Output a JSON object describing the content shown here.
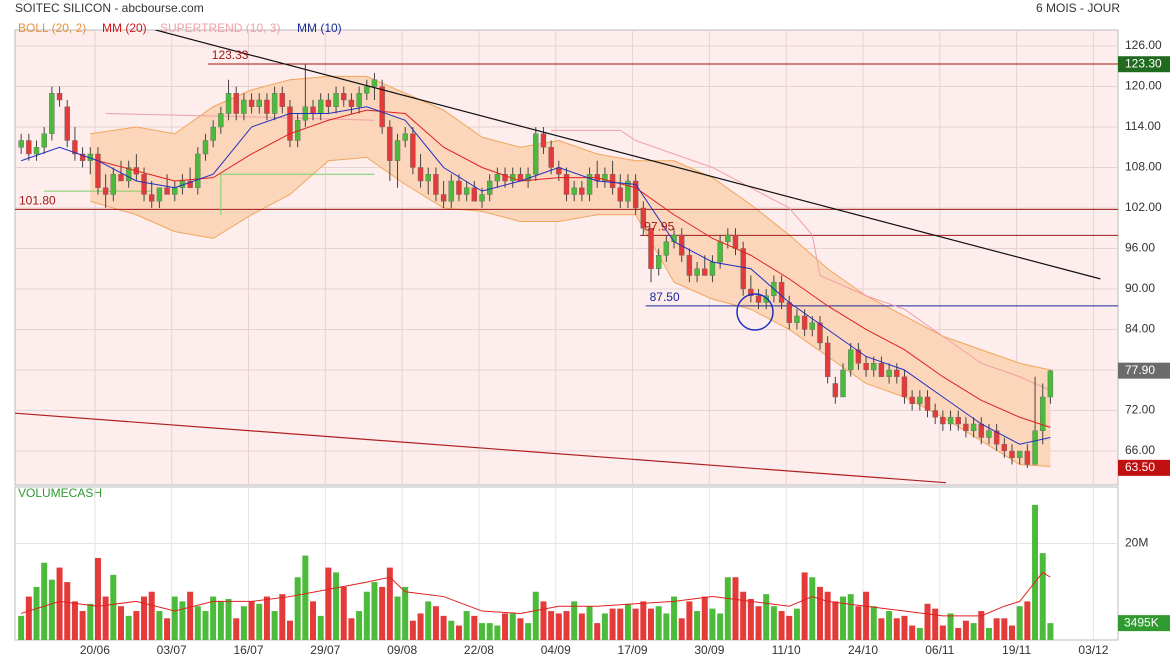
{
  "chart_data": {
    "type": "candlestick",
    "title": "SOITEC SILICON - abcbourse.com",
    "period": "6 MOIS - JOUR",
    "xlim": [
      -0.8,
      142.8
    ],
    "xticks": [
      {
        "value": 9.6,
        "label": "20/06"
      },
      {
        "value": 19.6,
        "label": "03/07"
      },
      {
        "value": 29.6,
        "label": "16/07"
      },
      {
        "value": 39.6,
        "label": "29/07"
      },
      {
        "value": 49.6,
        "label": "09/08"
      },
      {
        "value": 59.6,
        "label": "22/08"
      },
      {
        "value": 69.6,
        "label": "04/09"
      },
      {
        "value": 79.6,
        "label": "17/09"
      },
      {
        "value": 89.6,
        "label": "30/09"
      },
      {
        "value": 99.6,
        "label": "11/10"
      },
      {
        "value": 109.6,
        "label": "24/10"
      },
      {
        "value": 119.6,
        "label": "06/11"
      },
      {
        "value": 129.6,
        "label": "19/11"
      },
      {
        "value": 139.6,
        "label": "03/12"
      }
    ],
    "ylim": [
      60.96,
      128.37
    ],
    "yticks": [
      {
        "value": 66,
        "label": "66.00"
      },
      {
        "value": 72,
        "label": "72.00"
      },
      {
        "value": 78,
        "label": "78.00"
      },
      {
        "value": 84,
        "label": "84.00"
      },
      {
        "value": 90,
        "label": "90.00"
      },
      {
        "value": 96,
        "label": "96.00"
      },
      {
        "value": 102,
        "label": "102.00"
      },
      {
        "value": 108,
        "label": "108.00"
      },
      {
        "value": 114,
        "label": "114.00"
      },
      {
        "value": 120,
        "label": "120.00"
      },
      {
        "value": 126,
        "label": "126.00"
      }
    ],
    "grid": true,
    "up_color": "#4cbb3c",
    "down_color": "#e43a3a",
    "open": [
      111,
      112,
      110,
      111,
      113,
      119,
      117,
      112,
      110,
      109,
      110,
      105,
      104,
      107,
      106,
      108,
      107,
      104,
      103,
      105,
      104,
      105,
      106,
      105,
      110,
      112,
      114,
      116,
      119,
      116,
      118,
      117,
      118,
      116,
      119,
      117,
      112,
      115,
      117,
      116,
      118,
      117,
      119,
      118,
      117,
      119,
      120,
      120,
      114,
      109,
      112,
      113,
      108,
      106,
      107,
      104,
      103,
      106,
      104,
      105,
      103,
      104,
      106,
      107,
      106,
      107,
      106,
      107,
      113,
      111,
      108,
      107,
      104,
      105,
      104,
      107,
      106,
      107,
      105,
      103,
      106,
      102,
      99,
      93,
      95,
      97,
      98,
      95,
      92,
      93,
      92,
      94,
      97,
      98,
      96,
      90,
      89,
      88,
      89,
      91,
      88,
      85,
      86,
      84,
      85,
      82,
      76,
      74,
      78,
      81,
      79,
      78,
      79,
      77,
      78,
      77,
      74,
      73,
      74,
      72,
      71,
      70,
      71,
      70,
      69,
      70,
      68,
      69,
      67,
      66,
      65,
      66,
      64,
      69,
      74
    ],
    "high": [
      113,
      113,
      112,
      114,
      120,
      120,
      118,
      114,
      111,
      111,
      111,
      107,
      108,
      109,
      109,
      110,
      108,
      106,
      105,
      107,
      106,
      107,
      108,
      111,
      113,
      115,
      117,
      121,
      120,
      119,
      119,
      119,
      119,
      120,
      120,
      118,
      116,
      123.3,
      118,
      119,
      119,
      120,
      120,
      119,
      120,
      121,
      122,
      121,
      115,
      113,
      114,
      114,
      110,
      108,
      108,
      106,
      107,
      107,
      106,
      106,
      105,
      107,
      108,
      108,
      108,
      108,
      108,
      114,
      114,
      112,
      109,
      108,
      106,
      106,
      108,
      109,
      108,
      109,
      107,
      107,
      107,
      103,
      99,
      96,
      98,
      99,
      99,
      96,
      94,
      95,
      95,
      98,
      99,
      99,
      97,
      92,
      90,
      90,
      92,
      92,
      89,
      87,
      87,
      86,
      86,
      83,
      77,
      79,
      82,
      82,
      80,
      80,
      80,
      79,
      79,
      78,
      75,
      75,
      75,
      73,
      72,
      72,
      72,
      71,
      71,
      71,
      70,
      70,
      68,
      67,
      66,
      67,
      77,
      76,
      78
    ],
    "low": [
      110,
      109,
      109,
      110,
      112,
      117,
      111,
      109,
      108,
      107,
      104,
      102,
      103,
      106,
      105,
      106,
      103,
      102,
      102,
      104,
      103,
      104,
      105,
      104,
      109,
      111,
      113,
      115,
      115,
      115,
      116,
      116,
      115,
      115,
      116,
      111,
      111,
      114,
      115,
      115,
      116,
      116,
      117,
      116,
      116,
      118,
      118,
      113,
      106,
      105,
      111,
      107,
      105,
      104,
      103,
      102,
      102,
      103,
      103,
      103,
      102,
      103,
      105,
      105,
      105,
      106,
      105,
      106,
      110,
      107,
      106,
      103,
      103,
      103,
      103,
      105,
      105,
      104,
      102,
      102,
      101,
      98,
      91,
      92,
      94,
      96,
      94,
      91,
      91,
      92,
      91,
      93,
      96,
      95,
      89,
      88,
      87,
      87,
      88,
      87,
      84,
      84,
      83,
      83,
      81,
      76,
      73,
      74,
      77,
      78,
      77,
      77,
      77,
      76,
      76,
      73,
      72,
      72,
      71,
      70,
      69,
      69,
      69,
      68,
      68,
      67,
      67,
      66,
      65,
      64,
      64,
      63.5,
      64,
      67,
      73
    ],
    "close": [
      112,
      110,
      111,
      113,
      119,
      118,
      112,
      110,
      109,
      110,
      105,
      104,
      107,
      106,
      108,
      107,
      104,
      103,
      105,
      104,
      105,
      106,
      105,
      110,
      112,
      114,
      116,
      119,
      116,
      118,
      117,
      118,
      116,
      119,
      117,
      112,
      115,
      117,
      116,
      118,
      117,
      119,
      118,
      117,
      119,
      120,
      121,
      114,
      109,
      112,
      113,
      108,
      106,
      107,
      104,
      103,
      106,
      104,
      105,
      103,
      104,
      106,
      107,
      106,
      107,
      106,
      107,
      113,
      111,
      108,
      107,
      104,
      105,
      104,
      107,
      106,
      107,
      105,
      103,
      106,
      102,
      99,
      93,
      95,
      97,
      98,
      95,
      92,
      93,
      92,
      94,
      97,
      98,
      96,
      90,
      89,
      88,
      89,
      91,
      88,
      85,
      86,
      84,
      85,
      82,
      77,
      74,
      78,
      81,
      79,
      78,
      79,
      77,
      78,
      77,
      74,
      73,
      74,
      72,
      71,
      70,
      71,
      70,
      69,
      70,
      68,
      69,
      67,
      66,
      65,
      66,
      64,
      69,
      74,
      77.9
    ],
    "indicators": [
      {
        "name": "BOLL (20, 2)",
        "color": "#f2a65a",
        "fill": "#fbd6bb",
        "x": [
          9,
          15,
          20,
          25,
          30,
          35,
          40,
          45,
          50,
          55,
          60,
          65,
          70,
          75,
          80,
          85,
          90,
          95,
          100,
          105,
          110,
          115,
          120,
          125,
          130,
          134
        ],
        "upper": [
          113,
          114,
          113,
          117,
          119.5,
          121,
          121.5,
          121.5,
          119,
          116.5,
          112.5,
          111,
          112,
          110,
          109,
          109,
          106.5,
          102.5,
          98,
          93,
          89,
          86,
          83,
          81,
          79,
          78
        ],
        "lower": [
          103,
          101,
          98.5,
          97.5,
          101,
          104,
          109,
          109.5,
          105.5,
          102,
          101.5,
          100,
          100,
          101,
          101,
          91,
          88.5,
          87,
          84,
          80,
          76,
          74,
          71,
          67.5,
          64,
          63.7
        ]
      },
      {
        "name": "MM (20)",
        "color": "#e02020",
        "x": [
          10,
          15,
          20,
          25,
          30,
          35,
          40,
          45,
          50,
          55,
          60,
          65,
          70,
          75,
          80,
          85,
          90,
          95,
          100,
          105,
          110,
          115,
          120,
          125,
          130,
          134
        ],
        "values": [
          109,
          107.5,
          106,
          106.5,
          110,
          113,
          115,
          116.5,
          116,
          111,
          108,
          106,
          106.5,
          106.5,
          105,
          101,
          97.5,
          95,
          91.5,
          87.5,
          84,
          81,
          77,
          73.5,
          71,
          69.5
        ]
      },
      {
        "name": "SUPERTREND (10, 3)",
        "color": "#f0a0a8",
        "segments": [
          {
            "color": "#f0a0a8",
            "x": [
              11,
              30,
              46
            ],
            "values": [
              116,
              115.5,
              115
            ]
          },
          {
            "color": "#7ccf6a",
            "x": [
              3,
              17
            ],
            "values": [
              104.5,
              104.5
            ]
          },
          {
            "color": "#7ccf6a",
            "x": [
              26,
              26,
              46
            ],
            "values": [
              101,
              107,
              107
            ]
          },
          {
            "color": "#f0a0a8",
            "x": [
              69,
              78,
              80,
              90,
              100,
              103,
              104,
              110,
              115,
              120,
              125,
              130,
              134
            ],
            "values": [
              113.5,
              113.5,
              112,
              108,
              102,
              98,
              92,
              89,
              87,
              83,
              79,
              77,
              75
            ]
          }
        ]
      },
      {
        "name": "MM (10)",
        "color": "#2030c0",
        "x": [
          0,
          5,
          10,
          15,
          20,
          25,
          30,
          35,
          40,
          45,
          50,
          55,
          60,
          65,
          70,
          75,
          80,
          85,
          90,
          95,
          100,
          105,
          110,
          115,
          120,
          125,
          130,
          134
        ],
        "values": [
          109,
          111,
          109,
          106,
          105,
          107,
          114,
          116,
          116,
          117,
          115,
          108,
          104.5,
          106,
          108,
          106,
          105.5,
          97,
          94,
          93,
          88,
          84,
          80,
          78,
          74,
          70,
          67,
          68
        ]
      }
    ],
    "levels": [
      {
        "value": 123.33,
        "x": 24.3,
        "color": "#a01818"
      },
      {
        "value": 101.8,
        "label": "101.80",
        "x": -0.8,
        "color": "#a01818"
      },
      {
        "value": 97.95,
        "x": 80.6,
        "color": "#a01818"
      },
      {
        "value": 87.5,
        "label": "87.50",
        "x": 81.3,
        "color": "#1a2a9a"
      }
    ],
    "trendlines": [
      {
        "color": "#111111",
        "x": [
          17.4,
          140.5
        ],
        "values": [
          128.4,
          91.5
        ]
      },
      {
        "color": "#b02020",
        "x": [
          -0.8,
          120.4
        ],
        "values": [
          71.6,
          61.3
        ]
      }
    ],
    "price_markers": [
      {
        "value": 123.3,
        "label": "123.30",
        "color": "#1f6a1f"
      },
      {
        "value": 77.9,
        "label": "77.90",
        "color": "#6b6b6b"
      },
      {
        "value": 63.5,
        "label": "63.50",
        "color": "#c01010"
      }
    ],
    "volume": {
      "name": "VOLUMECASH",
      "ylim": [
        0,
        31700000
      ],
      "yticks": [
        {
          "value": 20000000,
          "label": "20M"
        }
      ],
      "values": [
        5000000,
        9000000,
        11000000,
        16000000,
        12500000,
        15000000,
        12000000,
        8000000,
        6000000,
        7500000,
        17000000,
        9000000,
        13500000,
        7000000,
        5000000,
        6000000,
        9000000,
        10000000,
        6000000,
        4500000,
        9000000,
        8000000,
        10000000,
        7000000,
        6000000,
        9000000,
        8000000,
        8500000,
        4500000,
        7000000,
        8000000,
        7500000,
        9000000,
        6000000,
        9500000,
        4000000,
        13000000,
        17500000,
        8000000,
        5000000,
        15000000,
        14000000,
        11000000,
        4500000,
        6000000,
        10000000,
        12000000,
        11000000,
        15000000,
        9000000,
        11000000,
        4000000,
        5500000,
        8000000,
        7000000,
        5000000,
        4000000,
        3000000,
        6000000,
        5000000,
        3500000,
        3500000,
        3000000,
        5500000,
        5500000,
        4500000,
        3500000,
        10000000,
        8000000,
        6000000,
        5500000,
        6000000,
        8000000,
        5500000,
        7000000,
        3500000,
        5500000,
        6500000,
        6500000,
        7500000,
        6500000,
        8000000,
        6500000,
        7000000,
        5500000,
        9000000,
        4500000,
        8000000,
        6000000,
        9000000,
        6500000,
        5500000,
        13000000,
        13000000,
        10000000,
        8500000,
        7000000,
        9500000,
        7000000,
        6000000,
        5000000,
        6500000,
        14000000,
        13000000,
        11000000,
        10000000,
        8000000,
        9000000,
        9500000,
        7000000,
        10000000,
        7000000,
        4500000,
        6000000,
        4500000,
        5000000,
        3000000,
        2500000,
        7500000,
        6500000,
        3000000,
        5500000,
        2500000,
        4000000,
        3500000,
        6000000,
        2500000,
        4500000,
        4500000,
        3000000,
        7000000,
        8000000,
        28000000,
        18000000,
        3495000
      ],
      "ma": {
        "color": "#e02020",
        "x": [
          0,
          5,
          10,
          15,
          20,
          25,
          30,
          35,
          40,
          45,
          48,
          50,
          55,
          60,
          65,
          70,
          75,
          80,
          85,
          90,
          95,
          100,
          103,
          105,
          110,
          115,
          120,
          125,
          128,
          130,
          133,
          134
        ],
        "values": [
          5500000,
          8000000,
          7000000,
          8000000,
          6000000,
          8000000,
          8000000,
          9000000,
          10500000,
          12000000,
          13000000,
          10000000,
          9000000,
          6000000,
          5500000,
          7000000,
          7000000,
          7500000,
          8000000,
          9000000,
          8000000,
          7000000,
          9000000,
          8000000,
          7000000,
          6000000,
          5000000,
          5000000,
          7000000,
          8000000,
          14000000,
          13000000
        ]
      },
      "marker": {
        "value": 3495000,
        "label": "3495K",
        "color": "#2f9a2f"
      }
    }
  }
}
